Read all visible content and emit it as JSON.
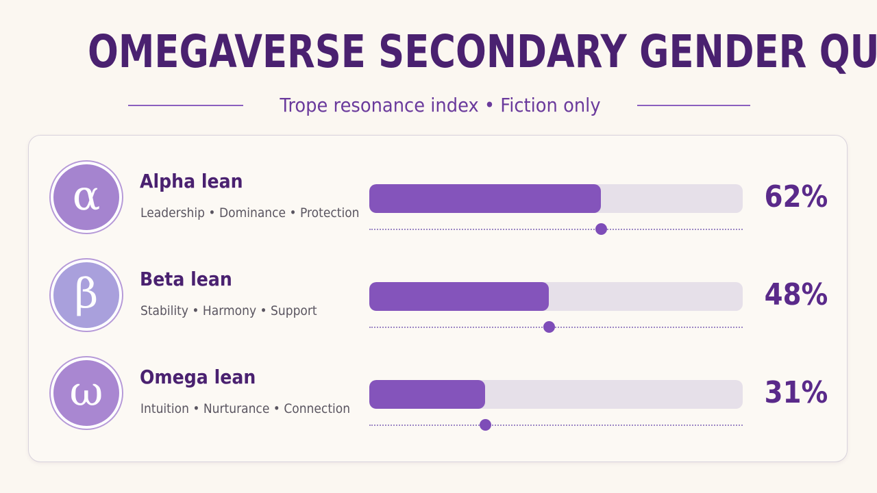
{
  "title": "OMEGAVERSE SECONDARY GENDER QUIZ",
  "subtitle": "Trope resonance index • Fiction only",
  "rows": [
    {
      "symbol": "α",
      "icon": "alpha-icon",
      "title": "Alpha lean",
      "traits": "Leadership • Dominance • Protection",
      "percent_label": "62%",
      "percent": 62,
      "badge_color": "#a584cf"
    },
    {
      "symbol": "β",
      "icon": "beta-icon",
      "title": "Beta lean",
      "traits": "Stability • Harmony • Support",
      "percent_label": "48%",
      "percent": 48,
      "badge_color": "#a9a0dc"
    },
    {
      "symbol": "ω",
      "icon": "omega-icon",
      "title": "Omega lean",
      "traits": "Intuition • Nurturance • Connection",
      "percent_label": "31%",
      "percent": 31,
      "badge_color": "#a987d1"
    }
  ],
  "colors": {
    "title": "#4a2170",
    "accent": "#8454bb",
    "track": "#e6e0e9",
    "background": "#fbf7f1"
  }
}
